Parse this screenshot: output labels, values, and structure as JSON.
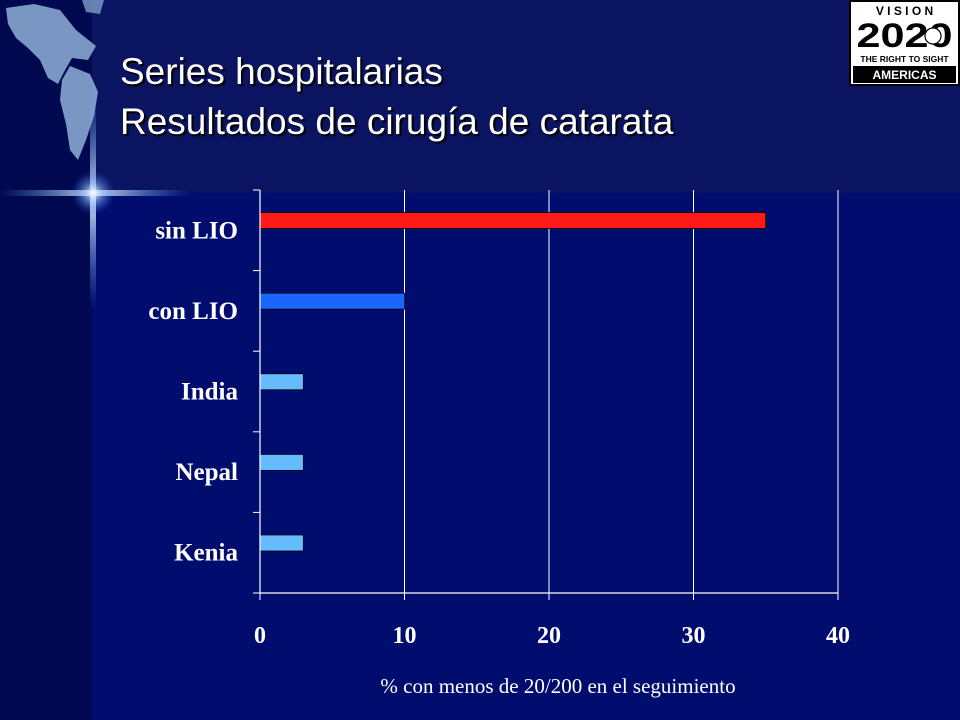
{
  "slide": {
    "title_line1": "Series hospitalarias",
    "title_line2": "Resultados de cirugía de catarata",
    "background_color": "#000c6e",
    "header_color": "#0a1460"
  },
  "logo": {
    "top_text": "V I S I O N",
    "number": "2020",
    "tagline": "THE RIGHT TO SIGHT",
    "region": "AMERICAS"
  },
  "chart_data": {
    "type": "bar",
    "orientation": "horizontal",
    "categories": [
      "sin LIO",
      "con LIO",
      "India",
      "Nepal",
      "Kenia"
    ],
    "values": [
      35,
      10,
      3,
      3,
      3
    ],
    "colors": [
      "#ff1a1a",
      "#1a66ff",
      "#66bbff",
      "#66bbff",
      "#66bbff"
    ],
    "xticks": [
      "0",
      "10",
      "20",
      "30",
      "40"
    ],
    "xlim": [
      0,
      40
    ],
    "xlabel": "% con menos de 20/200 en el seguimiento",
    "grid": true
  }
}
